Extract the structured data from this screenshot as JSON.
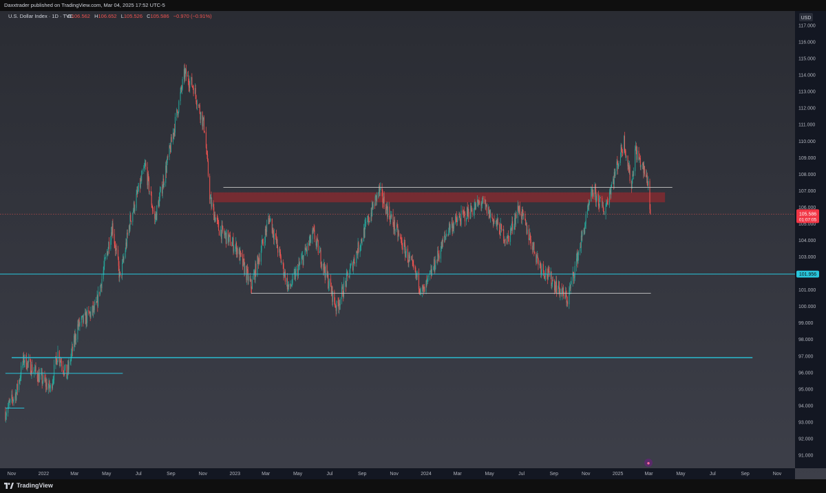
{
  "header": {
    "published": "Daxxtrader published on TradingView.com, Mar 04, 2025 17:52 UTC-5"
  },
  "footer": {
    "brand": "TradingView"
  },
  "symbol": {
    "name": "U.S. Dollar Index · 1D · TVC",
    "o_label": "O",
    "o_value": "106.562",
    "h_label": "H",
    "h_value": "106.652",
    "l_label": "L",
    "l_value": "105.526",
    "c_label": "C",
    "c_value": "105.586",
    "change": "−0.970 (−0.91%)"
  },
  "price_axis": {
    "currency": "USD",
    "current_price": "105.586",
    "countdown": "01:07:05",
    "level_label": "101.956"
  },
  "colors": {
    "background_top": "#2a2c33",
    "background_bottom": "#3d3f49",
    "up": "#26a69a",
    "down": "#ef5350",
    "level": "#29c6dc",
    "range": "#c8c8c8",
    "zone": "#8c2a2f",
    "label_bg": "#f23645"
  },
  "chart_data": {
    "type": "candlestick",
    "title": "U.S. Dollar Index · 1D · TVC",
    "ylabel": "USD",
    "ylim": [
      90.0,
      117.5
    ],
    "y_ticks": [
      91,
      92,
      93,
      94,
      95,
      96,
      97,
      98,
      99,
      100,
      101,
      102,
      103,
      104,
      105,
      106,
      107,
      108,
      109,
      110,
      111,
      112,
      113,
      114,
      115,
      116,
      117
    ],
    "y_tick_labels": [
      "91.000",
      "92.000",
      "93.000",
      "94.000",
      "95.000",
      "96.000",
      "97.000",
      "98.000",
      "99.000",
      "100.000",
      "101.000",
      "102.000",
      "103.000",
      "104.000",
      "105.000",
      "106.000",
      "107.000",
      "108.000",
      "109.000",
      "110.000",
      "111.000",
      "112.000",
      "113.000",
      "114.000",
      "115.000",
      "116.000",
      "117.000"
    ],
    "x_ticks": [
      {
        "date": "2021-11-01",
        "label": "Nov"
      },
      {
        "date": "2022-01-01",
        "label": "2022"
      },
      {
        "date": "2022-03-01",
        "label": "Mar"
      },
      {
        "date": "2022-05-01",
        "label": "May"
      },
      {
        "date": "2022-07-01",
        "label": "Jul"
      },
      {
        "date": "2022-09-01",
        "label": "Sep"
      },
      {
        "date": "2022-11-01",
        "label": "Nov"
      },
      {
        "date": "2023-01-01",
        "label": "2023"
      },
      {
        "date": "2023-03-01",
        "label": "Mar"
      },
      {
        "date": "2023-05-01",
        "label": "May"
      },
      {
        "date": "2023-07-01",
        "label": "Jul"
      },
      {
        "date": "2023-09-01",
        "label": "Sep"
      },
      {
        "date": "2023-11-01",
        "label": "Nov"
      },
      {
        "date": "2024-01-01",
        "label": "2024"
      },
      {
        "date": "2024-03-01",
        "label": "Mar"
      },
      {
        "date": "2024-05-01",
        "label": "May"
      },
      {
        "date": "2024-07-01",
        "label": "Jul"
      },
      {
        "date": "2024-09-01",
        "label": "Sep"
      },
      {
        "date": "2024-11-01",
        "label": "Nov"
      },
      {
        "date": "2025-01-01",
        "label": "2025"
      },
      {
        "date": "2025-03-01",
        "label": "Mar"
      },
      {
        "date": "2025-05-01",
        "label": "May"
      },
      {
        "date": "2025-07-01",
        "label": "Jul"
      },
      {
        "date": "2025-09-01",
        "label": "Sep"
      },
      {
        "date": "2025-11-01",
        "label": "Nov"
      }
    ],
    "x_range": [
      "2021-10-20",
      "2025-12-15"
    ],
    "price_path": [
      {
        "date": "2021-10-20",
        "close": 93.6
      },
      {
        "date": "2021-11-10",
        "close": 94.8
      },
      {
        "date": "2021-11-24",
        "close": 96.8
      },
      {
        "date": "2022-01-14",
        "close": 95.0
      },
      {
        "date": "2022-01-28",
        "close": 97.2
      },
      {
        "date": "2022-02-14",
        "close": 95.8
      },
      {
        "date": "2022-03-07",
        "close": 98.8
      },
      {
        "date": "2022-04-11",
        "close": 99.9
      },
      {
        "date": "2022-05-12",
        "close": 104.9
      },
      {
        "date": "2022-05-27",
        "close": 101.6
      },
      {
        "date": "2022-06-15",
        "close": 105.2
      },
      {
        "date": "2022-07-14",
        "close": 108.5
      },
      {
        "date": "2022-08-01",
        "close": 105.2
      },
      {
        "date": "2022-08-29",
        "close": 109.3
      },
      {
        "date": "2022-09-27",
        "close": 114.1
      },
      {
        "date": "2022-10-14",
        "close": 113.3
      },
      {
        "date": "2022-11-04",
        "close": 110.8
      },
      {
        "date": "2022-11-15",
        "close": 106.4
      },
      {
        "date": "2022-12-01",
        "close": 104.7
      },
      {
        "date": "2023-01-05",
        "close": 103.5
      },
      {
        "date": "2023-02-01",
        "close": 101.2
      },
      {
        "date": "2023-03-08",
        "close": 105.4
      },
      {
        "date": "2023-04-14",
        "close": 101.0
      },
      {
        "date": "2023-05-31",
        "close": 104.4
      },
      {
        "date": "2023-07-14",
        "close": 99.9
      },
      {
        "date": "2023-10-03",
        "close": 107.0
      },
      {
        "date": "2023-12-27",
        "close": 100.8
      },
      {
        "date": "2024-02-14",
        "close": 104.8
      },
      {
        "date": "2024-04-16",
        "close": 106.3
      },
      {
        "date": "2024-06-04",
        "close": 104.0
      },
      {
        "date": "2024-06-26",
        "close": 106.0
      },
      {
        "date": "2024-08-05",
        "close": 102.5
      },
      {
        "date": "2024-09-27",
        "close": 100.4
      },
      {
        "date": "2024-11-14",
        "close": 107.0
      },
      {
        "date": "2024-12-06",
        "close": 105.8
      },
      {
        "date": "2025-01-13",
        "close": 110.0
      },
      {
        "date": "2025-01-27",
        "close": 107.3
      },
      {
        "date": "2025-02-03",
        "close": 109.5
      },
      {
        "date": "2025-02-28",
        "close": 107.5
      },
      {
        "date": "2025-03-04",
        "close": 105.586
      }
    ],
    "annotations": {
      "resistance_zone": {
        "y_low": 106.3,
        "y_high": 106.9,
        "x_start": "2022-11-20",
        "x_end": "2025-04-01"
      },
      "range_top_line": {
        "y": 107.2,
        "x_start": "2022-12-10",
        "x_end": "2025-04-15"
      },
      "range_bottom_line": {
        "y": 100.8,
        "x_start": "2023-02-01",
        "x_end": "2025-03-05"
      },
      "support_line": {
        "y": 101.956,
        "x_start": "2021-10-20",
        "x_end": "2025-12-15"
      },
      "long_support_line": {
        "y": 96.9,
        "x_start": "2021-11-01",
        "x_end": "2025-09-15"
      },
      "short_line_2021": {
        "y": 95.95,
        "x_start": "2021-10-20",
        "x_end": "2022-06-01"
      },
      "short_line_2021_low": {
        "y": 93.85,
        "x_start": "2021-10-20",
        "x_end": "2021-11-25"
      },
      "last_price_line": {
        "y": 105.586
      }
    }
  }
}
